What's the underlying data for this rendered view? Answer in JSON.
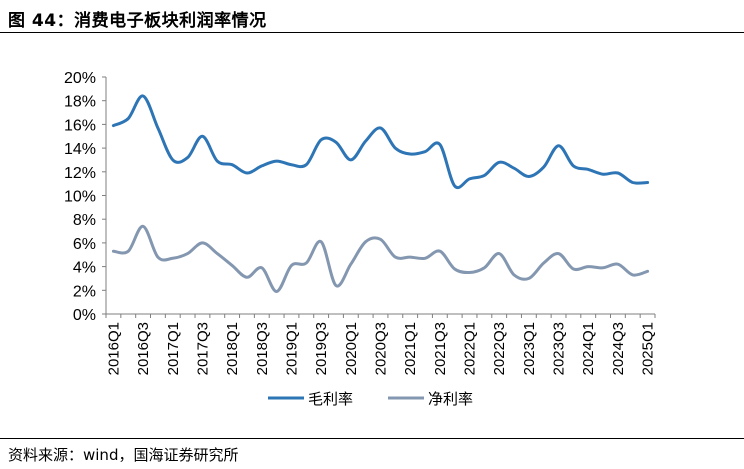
{
  "figure": {
    "title": "图 44：消费电子板块利润率情况",
    "source": "资料来源：wind，国海证券研究所"
  },
  "chart_data": {
    "type": "line",
    "title": "消费电子板块利润率情况",
    "xlabel": "",
    "ylabel": "",
    "ylim": [
      0,
      20
    ],
    "ytick_labels": [
      "0%",
      "2%",
      "4%",
      "6%",
      "8%",
      "10%",
      "12%",
      "14%",
      "16%",
      "18%",
      "20%"
    ],
    "categories": [
      "2016Q1",
      "2016Q2",
      "2016Q3",
      "2016Q4",
      "2017Q1",
      "2017Q2",
      "2017Q3",
      "2017Q4",
      "2018Q1",
      "2018Q2",
      "2018Q3",
      "2018Q4",
      "2019Q1",
      "2019Q2",
      "2019Q3",
      "2019Q4",
      "2020Q1",
      "2020Q2",
      "2020Q3",
      "2020Q4",
      "2021Q1",
      "2021Q2",
      "2021Q3",
      "2021Q4",
      "2022Q1",
      "2022Q2",
      "2022Q3",
      "2022Q4",
      "2023Q1",
      "2023Q2",
      "2023Q3",
      "2023Q4",
      "2024Q1",
      "2024Q2",
      "2024Q3",
      "2024Q4",
      "2025Q1"
    ],
    "xtick_labels": [
      "2016Q1",
      "2016Q3",
      "2017Q1",
      "2017Q3",
      "2018Q1",
      "2018Q3",
      "2019Q1",
      "2019Q3",
      "2020Q1",
      "2020Q3",
      "2021Q1",
      "2021Q3",
      "2022Q1",
      "2022Q3",
      "2023Q1",
      "2023Q3",
      "2024Q1",
      "2024Q3",
      "2025Q1"
    ],
    "series": [
      {
        "name": "毛利率",
        "color": "#2E75B6",
        "values": [
          15.9,
          16.5,
          18.4,
          15.7,
          13.0,
          13.2,
          15.0,
          12.9,
          12.6,
          11.9,
          12.5,
          12.9,
          12.6,
          12.6,
          14.7,
          14.5,
          13.0,
          14.6,
          15.7,
          14.0,
          13.5,
          13.7,
          14.3,
          10.8,
          11.4,
          11.7,
          12.8,
          12.3,
          11.6,
          12.4,
          14.2,
          12.5,
          12.2,
          11.8,
          11.9,
          11.1,
          11.1
        ]
      },
      {
        "name": "净利率",
        "color": "#8497B0",
        "values": [
          5.3,
          5.3,
          7.4,
          4.8,
          4.7,
          5.1,
          6.0,
          5.1,
          4.1,
          3.1,
          3.9,
          1.9,
          4.1,
          4.3,
          6.1,
          2.4,
          4.2,
          6.1,
          6.3,
          4.8,
          4.8,
          4.7,
          5.3,
          3.8,
          3.5,
          3.9,
          5.1,
          3.3,
          3.0,
          4.3,
          5.1,
          3.8,
          4.0,
          3.9,
          4.2,
          3.3,
          3.6
        ]
      }
    ],
    "legend": {
      "position": "bottom"
    },
    "grid": false
  }
}
